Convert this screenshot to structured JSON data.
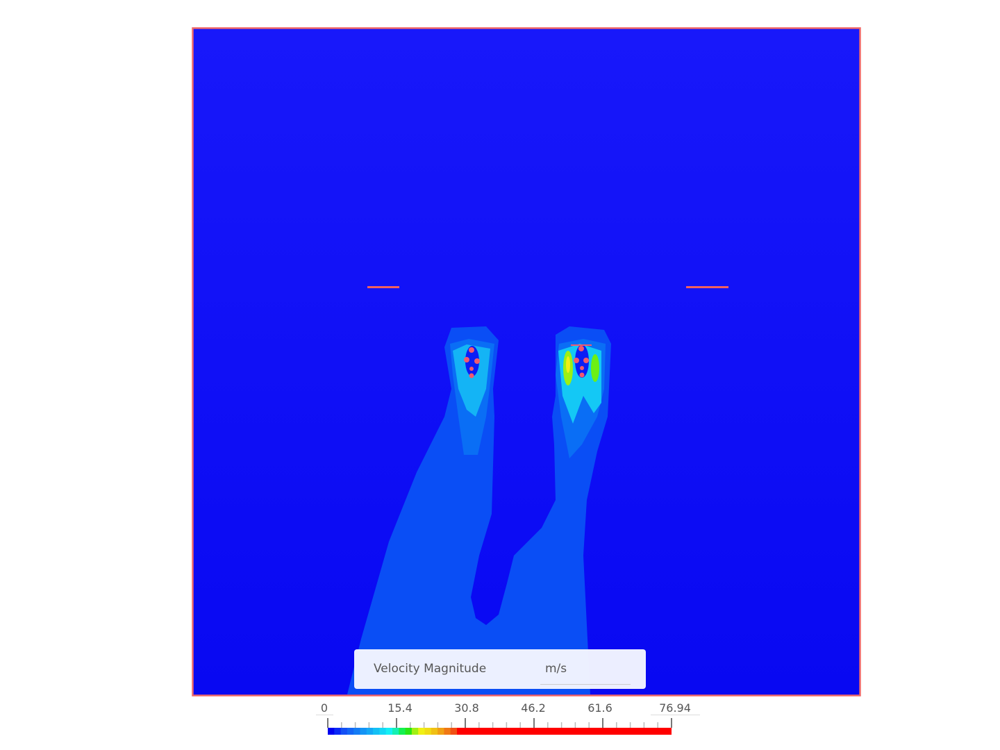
{
  "legend": {
    "title": "Velocity Magnitude",
    "unit": "m/s",
    "tick_labels": [
      "0",
      "15.4",
      "30.8",
      "46.2",
      "61.6",
      "76.94"
    ],
    "range": [
      0,
      76.94
    ],
    "colormap": [
      "#0000f0",
      "#0a28f5",
      "#1450f5",
      "#1466f5",
      "#147cf5",
      "#1494f5",
      "#14a8f5",
      "#14c0f5",
      "#14d8f5",
      "#14f0f5",
      "#14f0b4",
      "#14f050",
      "#28e614",
      "#a0f014",
      "#f0f014",
      "#f0dc14",
      "#f0c014",
      "#f0a014",
      "#f07814",
      "#f05014",
      "#ff0000"
    ],
    "colors": {
      "frame": "#f06868",
      "background": "#1414fa",
      "plume": "#0a50f5"
    }
  }
}
